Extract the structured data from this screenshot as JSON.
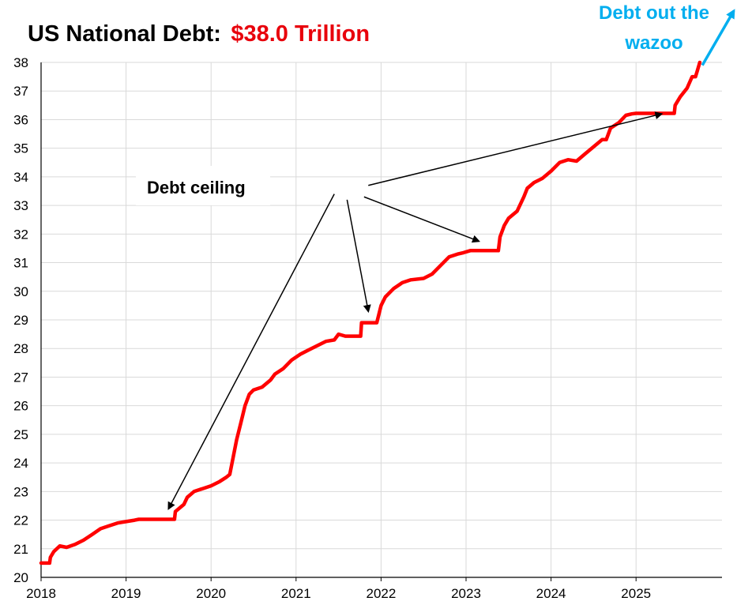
{
  "title": {
    "main": "US National Debt:",
    "value": "$38.0 Trillion"
  },
  "colors": {
    "line": "#ff0000",
    "title_value": "#e8000b",
    "annotation_blue": "#00aeef",
    "grid": "#d9d9d9"
  },
  "annotations": {
    "debt_ceiling": "Debt ceiling",
    "wazoo_line1": "Debt out the",
    "wazoo_line2": "wazoo"
  },
  "chart_data": {
    "type": "line",
    "title": "US National Debt: $38.0 Trillion",
    "xlabel": "",
    "ylabel": "",
    "xlim": [
      2018,
      2025.8
    ],
    "ylim": [
      20,
      38
    ],
    "x_ticks": [
      "2018",
      "2019",
      "2020",
      "2021",
      "2022",
      "2023",
      "2024",
      "2025"
    ],
    "y_ticks": [
      "20",
      "21",
      "22",
      "23",
      "24",
      "25",
      "26",
      "27",
      "28",
      "29",
      "30",
      "31",
      "32",
      "33",
      "34",
      "35",
      "36",
      "37",
      "38"
    ],
    "grid": true,
    "series": [
      {
        "points": [
          [
            2018.0,
            20.5
          ],
          [
            2018.1,
            20.5
          ],
          [
            2018.11,
            20.7
          ],
          [
            2018.15,
            20.9
          ],
          [
            2018.22,
            21.1
          ],
          [
            2018.3,
            21.05
          ],
          [
            2018.4,
            21.15
          ],
          [
            2018.5,
            21.3
          ],
          [
            2018.6,
            21.5
          ],
          [
            2018.7,
            21.7
          ],
          [
            2018.8,
            21.8
          ],
          [
            2018.9,
            21.9
          ],
          [
            2019.0,
            21.95
          ],
          [
            2019.1,
            22.0
          ],
          [
            2019.15,
            22.03
          ],
          [
            2019.3,
            22.03
          ],
          [
            2019.5,
            22.03
          ],
          [
            2019.57,
            22.03
          ],
          [
            2019.58,
            22.3
          ],
          [
            2019.68,
            22.55
          ],
          [
            2019.72,
            22.8
          ],
          [
            2019.8,
            23.0
          ],
          [
            2019.9,
            23.1
          ],
          [
            2020.0,
            23.2
          ],
          [
            2020.1,
            23.35
          ],
          [
            2020.18,
            23.5
          ],
          [
            2020.22,
            23.6
          ],
          [
            2020.26,
            24.2
          ],
          [
            2020.3,
            24.8
          ],
          [
            2020.35,
            25.4
          ],
          [
            2020.4,
            26.0
          ],
          [
            2020.45,
            26.4
          ],
          [
            2020.5,
            26.55
          ],
          [
            2020.6,
            26.65
          ],
          [
            2020.7,
            26.9
          ],
          [
            2020.75,
            27.1
          ],
          [
            2020.85,
            27.3
          ],
          [
            2020.95,
            27.6
          ],
          [
            2021.05,
            27.8
          ],
          [
            2021.15,
            27.95
          ],
          [
            2021.25,
            28.1
          ],
          [
            2021.35,
            28.25
          ],
          [
            2021.45,
            28.3
          ],
          [
            2021.5,
            28.5
          ],
          [
            2021.58,
            28.43
          ],
          [
            2021.76,
            28.43
          ],
          [
            2021.77,
            28.9
          ],
          [
            2021.95,
            28.9
          ],
          [
            2022.0,
            29.5
          ],
          [
            2022.05,
            29.8
          ],
          [
            2022.15,
            30.1
          ],
          [
            2022.25,
            30.3
          ],
          [
            2022.35,
            30.4
          ],
          [
            2022.5,
            30.45
          ],
          [
            2022.6,
            30.6
          ],
          [
            2022.7,
            30.9
          ],
          [
            2022.8,
            31.2
          ],
          [
            2022.9,
            31.3
          ],
          [
            2022.97,
            31.35
          ],
          [
            2023.05,
            31.42
          ],
          [
            2023.38,
            31.42
          ],
          [
            2023.4,
            31.9
          ],
          [
            2023.45,
            32.3
          ],
          [
            2023.5,
            32.55
          ],
          [
            2023.6,
            32.8
          ],
          [
            2023.68,
            33.3
          ],
          [
            2023.72,
            33.6
          ],
          [
            2023.8,
            33.8
          ],
          [
            2023.9,
            33.95
          ],
          [
            2024.0,
            34.2
          ],
          [
            2024.1,
            34.5
          ],
          [
            2024.2,
            34.6
          ],
          [
            2024.3,
            34.55
          ],
          [
            2024.4,
            34.8
          ],
          [
            2024.5,
            35.05
          ],
          [
            2024.6,
            35.3
          ],
          [
            2024.65,
            35.3
          ],
          [
            2024.7,
            35.7
          ],
          [
            2024.8,
            35.9
          ],
          [
            2024.88,
            36.15
          ],
          [
            2024.95,
            36.2
          ],
          [
            2025.0,
            36.22
          ],
          [
            2025.45,
            36.22
          ],
          [
            2025.46,
            36.5
          ],
          [
            2025.52,
            36.8
          ],
          [
            2025.6,
            37.1
          ],
          [
            2025.66,
            37.5
          ],
          [
            2025.7,
            37.5
          ],
          [
            2025.72,
            37.7
          ],
          [
            2025.75,
            38.0
          ]
        ]
      }
    ],
    "arrows": [
      {
        "from": [
          2021.45,
          33.4
        ],
        "to": [
          2019.5,
          22.4
        ],
        "color": "#000000"
      },
      {
        "from": [
          2021.6,
          33.2
        ],
        "to": [
          2021.85,
          29.3
        ],
        "color": "#000000"
      },
      {
        "from": [
          2021.8,
          33.3
        ],
        "to": [
          2023.15,
          31.75
        ],
        "color": "#000000"
      },
      {
        "from": [
          2021.85,
          33.7
        ],
        "to": [
          2025.3,
          36.2
        ],
        "color": "#000000"
      },
      {
        "from": [
          2025.78,
          37.9
        ],
        "to": [
          2026.15,
          39.8
        ],
        "color": "#00aeef"
      }
    ]
  }
}
